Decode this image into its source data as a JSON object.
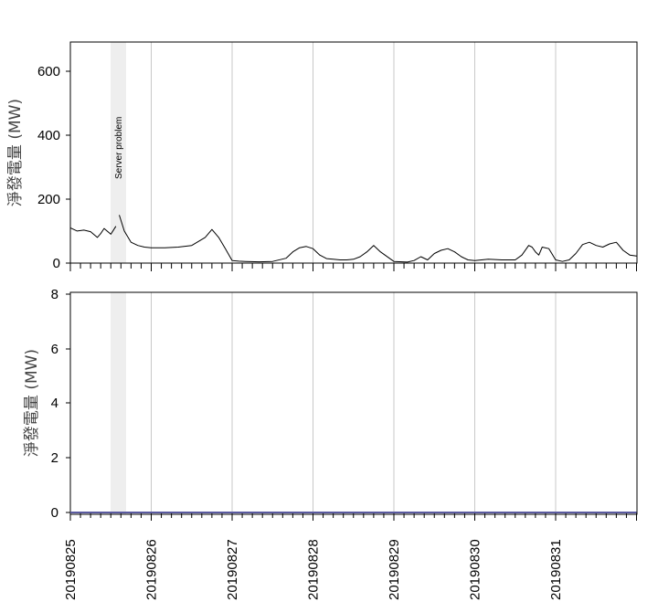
{
  "chart_data": [
    {
      "type": "line",
      "ylabel": "淨發電量 (MW)",
      "ylim": [
        0,
        690
      ],
      "yticks": [
        "0",
        "200",
        "400",
        "600"
      ],
      "x_domain": [
        "2019-08-25 00:00",
        "2019-09-01 00:00"
      ],
      "x_ticks": [
        "20190825",
        "20190826",
        "20190827",
        "20190828",
        "20190829",
        "20190830",
        "20190831"
      ],
      "grid": "vertical",
      "annotation": {
        "text": "Server problem",
        "x_start": "2019-08-25 12:30",
        "x_end": "2019-08-25 14:30"
      },
      "series": [
        {
          "color": "#000000",
          "x_hours": [
            0,
            2,
            4,
            6,
            8,
            9,
            10,
            12,
            13.5
          ],
          "y": [
            110,
            100,
            103,
            98,
            80,
            92,
            108,
            90,
            115
          ]
        },
        {
          "color": "#000000",
          "x_hours": [
            14.5,
            16,
            18,
            20,
            22,
            24,
            28,
            32,
            36,
            40,
            42,
            44,
            46,
            48,
            50,
            52,
            56,
            60,
            64,
            66,
            68,
            70,
            72,
            74,
            76,
            78,
            80,
            82,
            84,
            86,
            88,
            90,
            92,
            96,
            100,
            102,
            104,
            106,
            108,
            110,
            112,
            114,
            116,
            118,
            120,
            124,
            128,
            132,
            134,
            136,
            137,
            138,
            139,
            140,
            142,
            144,
            146,
            148,
            150,
            152,
            154,
            156,
            158,
            160,
            162,
            164,
            166,
            168
          ],
          "y": [
            150,
            100,
            65,
            55,
            50,
            48,
            48,
            50,
            55,
            80,
            105,
            80,
            45,
            8,
            6,
            5,
            4,
            5,
            15,
            35,
            48,
            52,
            45,
            25,
            14,
            12,
            10,
            10,
            12,
            20,
            35,
            55,
            35,
            5,
            3,
            8,
            20,
            10,
            30,
            40,
            45,
            35,
            20,
            10,
            8,
            12,
            10,
            10,
            25,
            55,
            50,
            35,
            25,
            50,
            45,
            10,
            5,
            10,
            30,
            58,
            65,
            55,
            50,
            60,
            65,
            40,
            25,
            22
          ]
        }
      ]
    },
    {
      "type": "line",
      "ylabel": "淨發電量 (MW)",
      "ylim": [
        0,
        8.2
      ],
      "yticks": [
        "0",
        "2",
        "4",
        "6",
        "8"
      ],
      "x_domain": [
        "2019-08-25 00:00",
        "2019-09-01 00:00"
      ],
      "x_ticks": [
        "20190825",
        "20190826",
        "20190827",
        "20190828",
        "20190829",
        "20190830",
        "20190831"
      ],
      "grid": "vertical",
      "series": [
        {
          "color": "#5a5aa0",
          "x_hours": [
            0,
            168
          ],
          "y": [
            0,
            0
          ]
        }
      ]
    }
  ]
}
